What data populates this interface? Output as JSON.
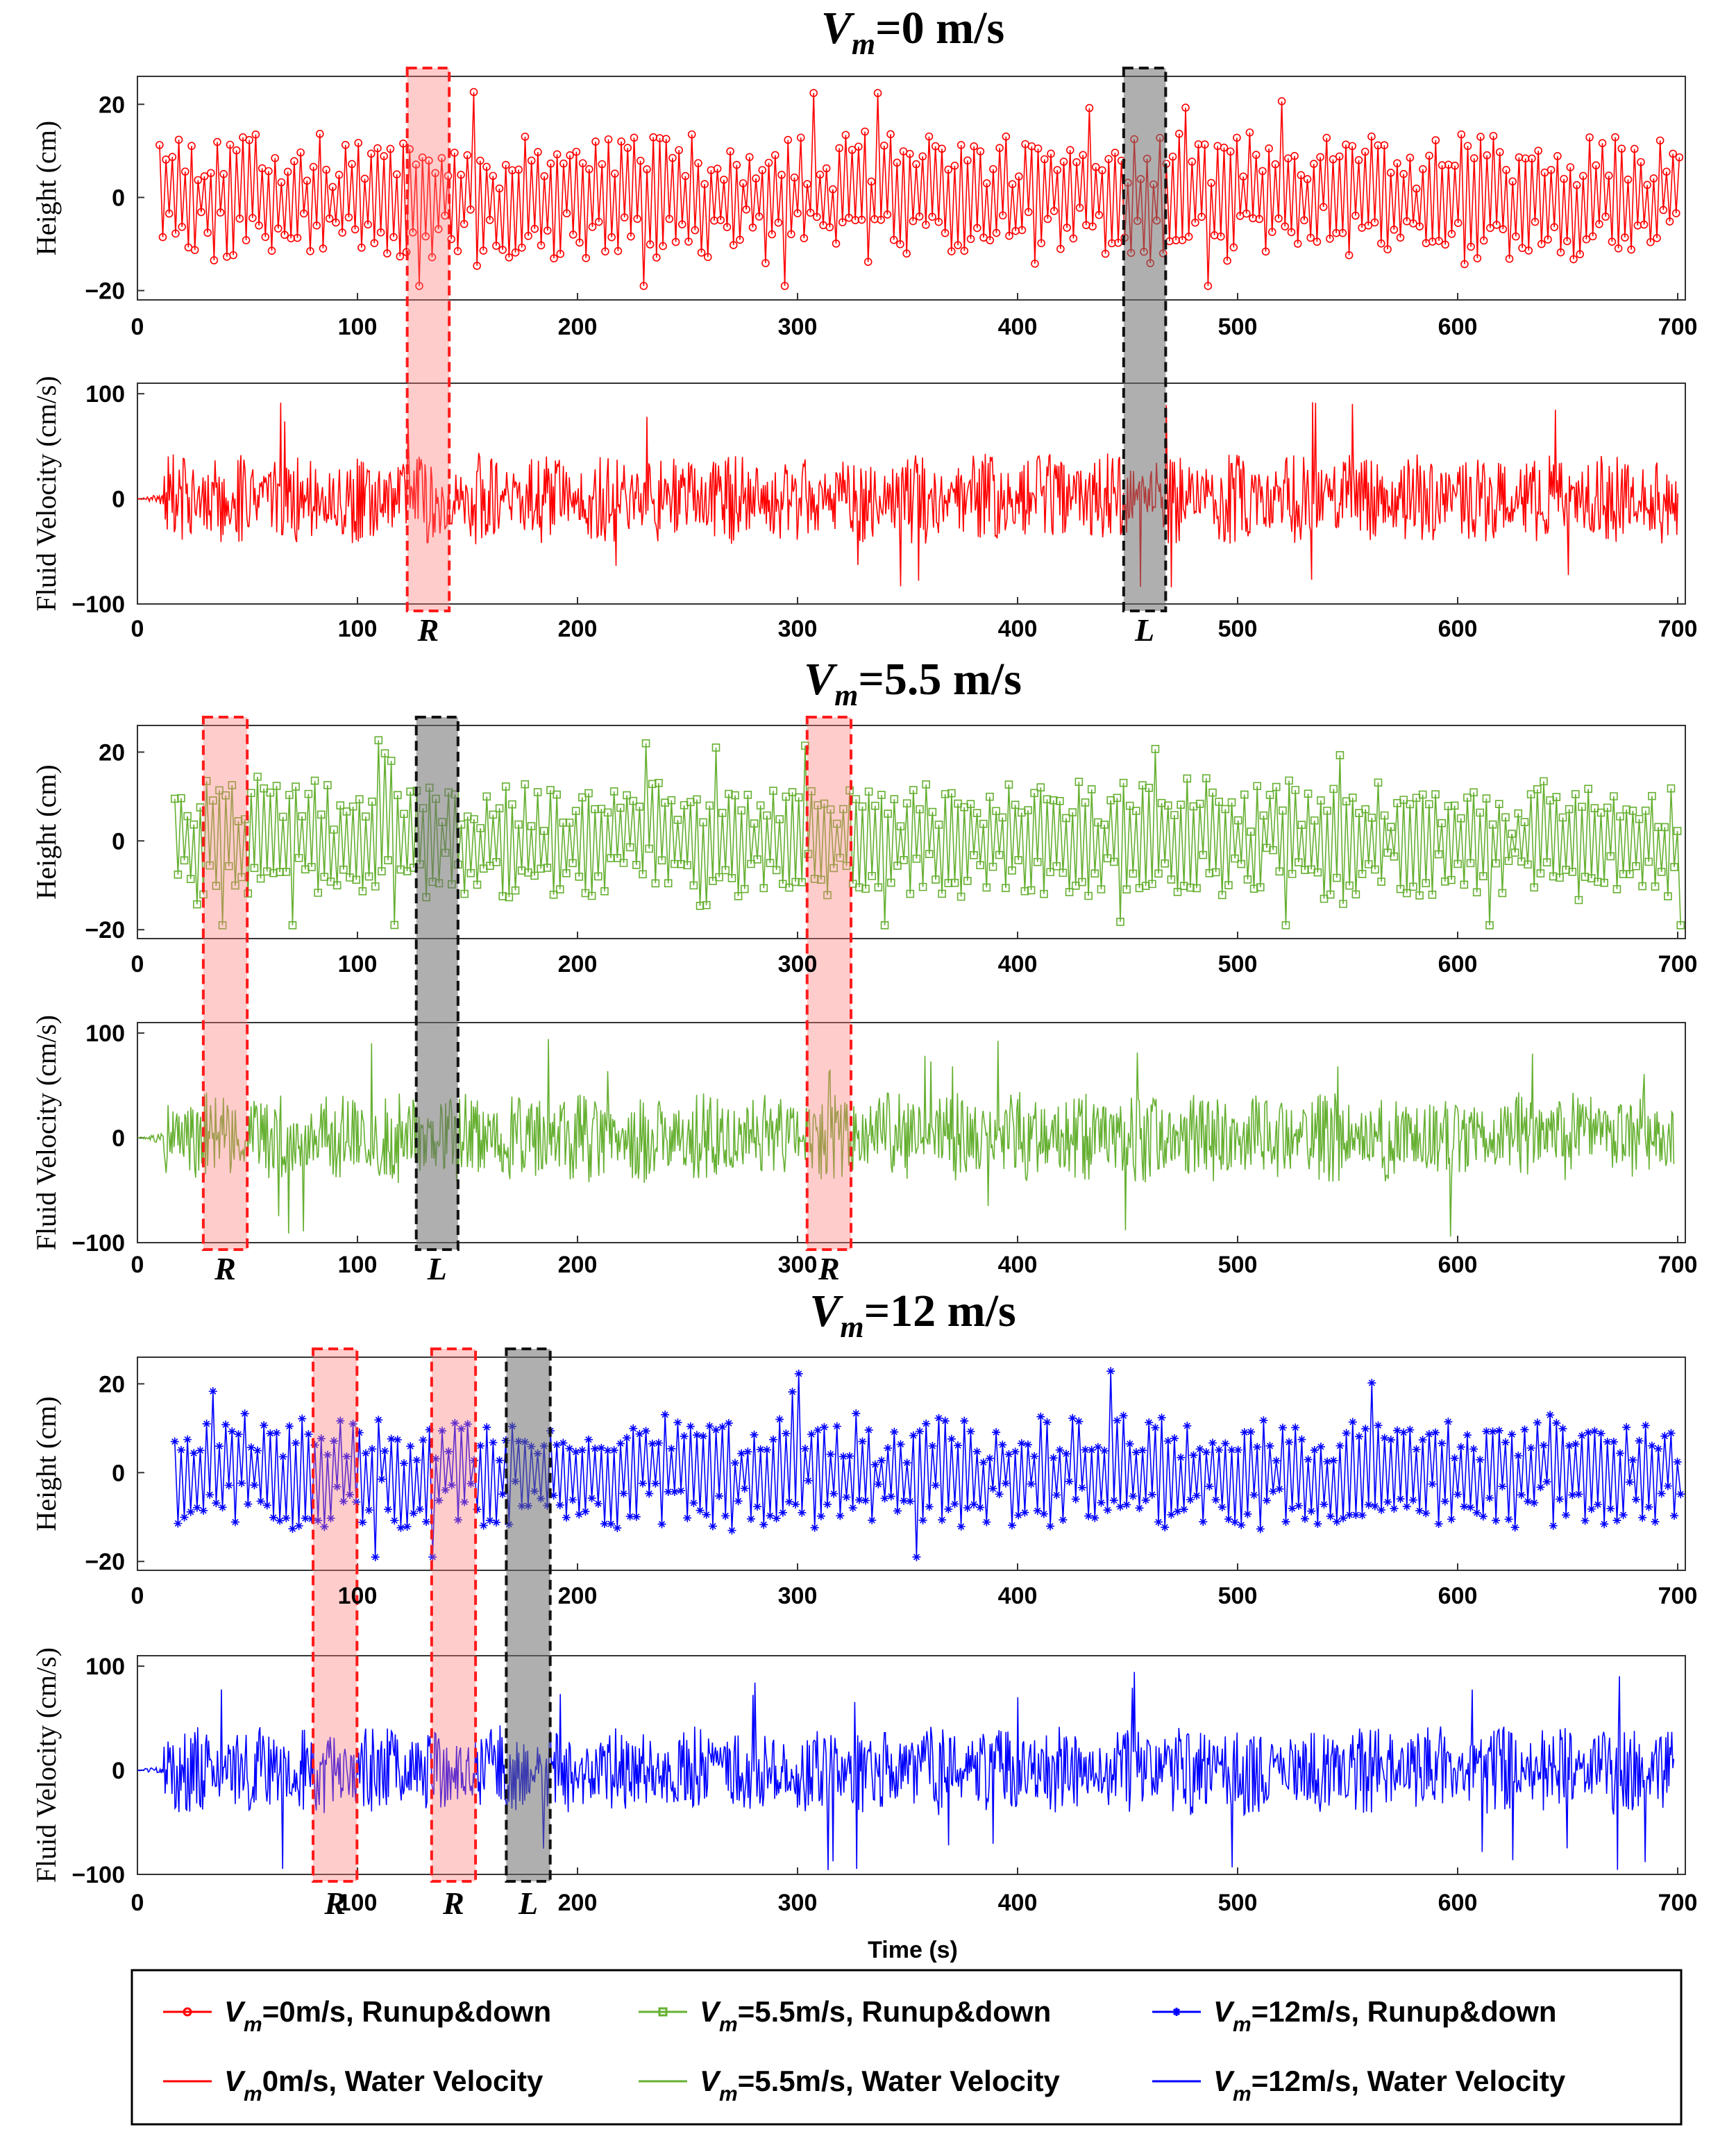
{
  "figure": {
    "xlabel": "Time (s)",
    "legend": [
      {
        "sym": "V",
        "sub": "m",
        "rest": "=0m/s, Runup&down",
        "color": "#ff0000",
        "marker": "circle"
      },
      {
        "sym": "V",
        "sub": "m",
        "rest": "=5.5m/s, Runup&down",
        "color": "#66b032",
        "marker": "square"
      },
      {
        "sym": "V",
        "sub": "m",
        "rest": "=12m/s, Runup&down",
        "color": "#0000ff",
        "marker": "star"
      },
      {
        "sym": "V",
        "sub": "m",
        "rest": "0m/s, Water Velocity",
        "color": "#ff0000",
        "marker": "none"
      },
      {
        "sym": "V",
        "sub": "m",
        "rest": "=5.5m/s, Water Velocity",
        "color": "#66b032",
        "marker": "none"
      },
      {
        "sym": "V",
        "sub": "m",
        "rest": "=12m/s, Water Velocity",
        "color": "#0000ff",
        "marker": "none"
      }
    ]
  },
  "chart_data": [
    {
      "type": "line",
      "title_symbol": "V",
      "title_sub": "m",
      "title_rest": "=0 m/s",
      "color": "#ff0000",
      "height_panel": {
        "ylabel": "Height (cm)",
        "xlim": [
          0,
          700
        ],
        "ylim": [
          -22,
          26
        ],
        "yticks": [
          "20",
          "0",
          "−20"
        ],
        "xticks": [
          "0",
          "100",
          "200",
          "300",
          "400",
          "500",
          "600",
          "700"
        ],
        "marker": "circle",
        "t_start": 10,
        "t_end": 698,
        "amplitude_cm": 13
      },
      "velocity_panel": {
        "ylabel": "Fluid Velocity (cm/s)",
        "xlim": [
          0,
          700
        ],
        "ylim": [
          -100,
          110
        ],
        "yticks": [
          "100",
          "0",
          "−100"
        ],
        "xticks": [
          "0",
          "100",
          "200",
          "300",
          "400",
          "500",
          "600",
          "700"
        ],
        "t_start": 0,
        "t_end": 697,
        "amplitude_cms": 40
      },
      "events": [
        {
          "label": "R",
          "type": "runup",
          "t_start": 122,
          "t_end": 141
        },
        {
          "label": "L",
          "type": "rundown",
          "t_start": 446,
          "t_end": 465
        }
      ]
    },
    {
      "type": "line",
      "title_symbol": "V",
      "title_sub": "m",
      "title_rest": "=5.5 m/s",
      "color": "#66b032",
      "height_panel": {
        "ylabel": "Height (cm)",
        "xlim": [
          0,
          705
        ],
        "ylim": [
          -22,
          26
        ],
        "yticks": [
          "20",
          "0",
          "−20"
        ],
        "xticks": [
          "0",
          "100",
          "200",
          "300",
          "400",
          "500",
          "600",
          "700"
        ],
        "marker": "square",
        "t_start": 17,
        "t_end": 703,
        "amplitude_cm": 13
      },
      "velocity_panel": {
        "ylabel": "Fluid Velocity (cm/s)",
        "xlim": [
          0,
          705
        ],
        "ylim": [
          -100,
          110
        ],
        "yticks": [
          "100",
          "0",
          "−100"
        ],
        "xticks": [
          "0",
          "100",
          "200",
          "300",
          "400",
          "500",
          "600",
          "700"
        ],
        "t_start": 0,
        "t_end": 700,
        "amplitude_cms": 40
      },
      "events": [
        {
          "label": "R",
          "type": "runup",
          "t_start": 30,
          "t_end": 50
        },
        {
          "label": "L",
          "type": "rundown",
          "t_start": 127,
          "t_end": 146
        },
        {
          "label": "R",
          "type": "runup",
          "t_start": 305,
          "t_end": 325
        }
      ]
    },
    {
      "type": "line",
      "title_symbol": "V",
      "title_sub": "m",
      "title_rest": "=12 m/s",
      "color": "#0000ff",
      "height_panel": {
        "ylabel": "Height (cm)",
        "xlim": [
          0,
          705
        ],
        "ylim": [
          -22,
          26
        ],
        "yticks": [
          "20",
          "0",
          "−20"
        ],
        "xticks": [
          "0",
          "100",
          "200",
          "300",
          "400",
          "500",
          "600",
          "700"
        ],
        "marker": "star",
        "t_start": 17,
        "t_end": 703,
        "amplitude_cm": 12
      },
      "velocity_panel": {
        "ylabel": "Fluid Velocity (cm/s)",
        "xlim": [
          0,
          705
        ],
        "ylim": [
          -100,
          110
        ],
        "yticks": [
          "100",
          "0",
          "−100"
        ],
        "xticks": [
          "0",
          "100",
          "200",
          "300",
          "400",
          "500",
          "600",
          "700"
        ],
        "t_start": 0,
        "t_end": 700,
        "amplitude_cms": 40
      },
      "events": [
        {
          "label": "R",
          "type": "runup",
          "t_start": 80,
          "t_end": 100
        },
        {
          "label": "R",
          "type": "runup",
          "t_start": 134,
          "t_end": 154
        },
        {
          "label": "L",
          "type": "rundown",
          "t_start": 168,
          "t_end": 188
        }
      ]
    }
  ]
}
